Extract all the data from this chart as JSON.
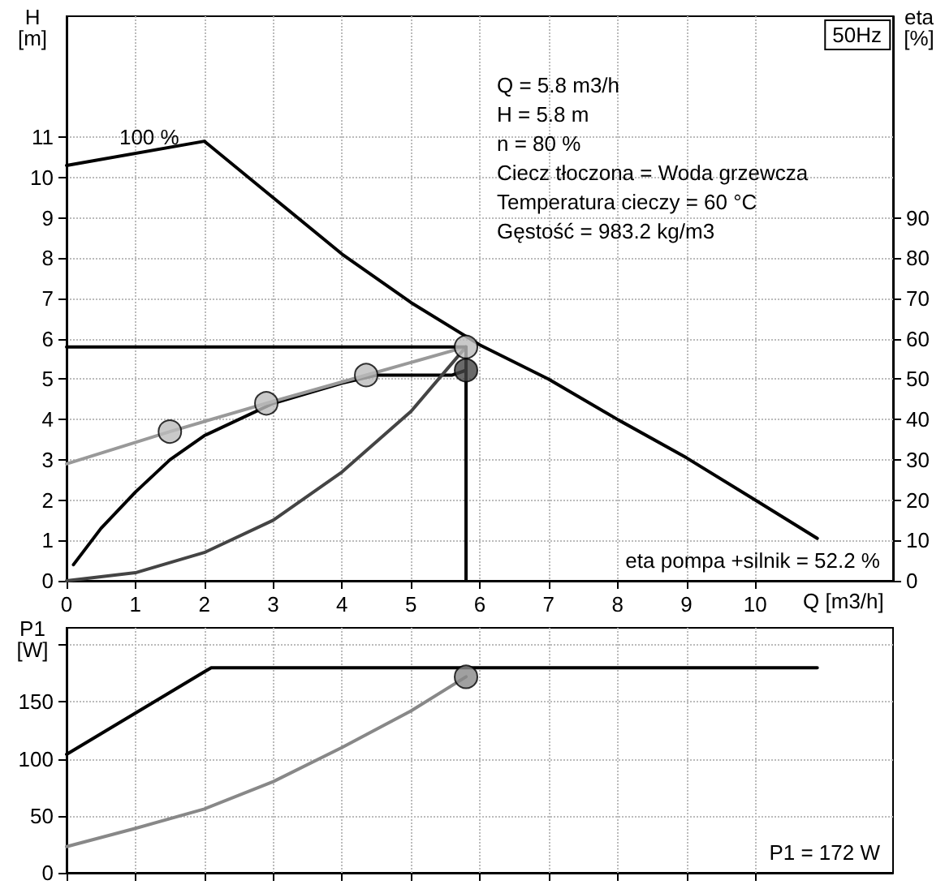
{
  "chart_data": [
    {
      "type": "line",
      "title": "50Hz",
      "xlabel": "Q [m3/h]",
      "ylabel": "H [m]",
      "y2label": "eta [%]",
      "xlim": [
        0,
        12
      ],
      "xticks": [
        0,
        1,
        2,
        3,
        4,
        5,
        6,
        7,
        8,
        9,
        10
      ],
      "ylim": [
        0,
        14
      ],
      "yticks": [
        0,
        1,
        2,
        3,
        4,
        5,
        6,
        7,
        8,
        9,
        10,
        11
      ],
      "y2lim": [
        0,
        140
      ],
      "y2ticks": [
        0,
        10,
        20,
        30,
        40,
        50,
        60,
        70,
        80,
        90
      ],
      "grid": true,
      "series": [
        {
          "color": "#000000",
          "x": [
            0,
            2,
            3,
            4,
            5,
            6,
            7,
            8,
            9,
            10,
            10.9
          ],
          "values": [
            10.3,
            10.9,
            9.5,
            8.1,
            6.9,
            5.85,
            5.0,
            4.0,
            3.05,
            2.0,
            1.05
          ]
        },
        {
          "color": "#000000",
          "axis": "y2",
          "x": [
            0.1,
            0.5,
            1,
            1.5,
            2,
            3,
            4,
            4.5,
            5,
            5.6,
            5.8
          ],
          "values": [
            4,
            13,
            22,
            30,
            36,
            44,
            49,
            51,
            51,
            51,
            52.2
          ]
        },
        {
          "color": "#999999",
          "x": [
            0,
            1.5,
            2.9,
            4.35,
            5.8
          ],
          "values": [
            2.9,
            3.7,
            4.4,
            5.1,
            5.8
          ]
        },
        {
          "color": "#444444",
          "x": [
            0,
            1,
            2,
            3,
            4,
            5,
            5.8
          ],
          "values": [
            0,
            0.2,
            0.7,
            1.5,
            2.7,
            4.2,
            5.8
          ]
        },
        {
          "color": "#000000",
          "x": [
            0,
            5.8,
            5.8
          ],
          "values": [
            5.8,
            5.8,
            0
          ]
        },
        {
          "type": "scatter",
          "marker": "circle",
          "color": "#bbbbbb",
          "x": [
            1.5,
            2.9,
            4.35,
            5.8
          ],
          "values": [
            3.7,
            4.4,
            5.1,
            5.8
          ]
        },
        {
          "type": "scatter",
          "marker": "circle",
          "color": "#444444",
          "axis": "y2",
          "x": [
            5.8
          ],
          "values": [
            52.2
          ]
        }
      ],
      "annotations": [
        {
          "text": "100 %",
          "x": 1.2,
          "y": 10.66
        },
        "Q = 5.8 m3/h",
        "H = 5.8 m",
        "n = 80 %",
        "Ciecz tłoczona = Woda grzewcza",
        "Temperatura cieczy = 60 °C",
        "Gęstość = 983.2 kg/m3",
        "eta pompa +silnik = 52.2 %"
      ]
    },
    {
      "type": "line",
      "ylabel": "P1 [W]",
      "tick_labels": "y",
      "xlim": [
        0,
        12
      ],
      "xticks": [
        0,
        1,
        2,
        3,
        4,
        5,
        6,
        7,
        8,
        9,
        10
      ],
      "ylim": [
        0,
        215
      ],
      "yticks": [
        0,
        50,
        100,
        150,
        {
          "value": 200,
          "label": null
        }
      ],
      "grid": true,
      "series": [
        {
          "color": "#000000",
          "x": [
            0,
            2.1,
            10.9
          ],
          "values": [
            104,
            180,
            180
          ]
        },
        {
          "color": "#888888",
          "x": [
            0,
            1,
            2,
            3,
            4,
            5,
            5.8
          ],
          "values": [
            23,
            39,
            56,
            80,
            110,
            142,
            172
          ]
        },
        {
          "type": "scatter",
          "marker": "circle",
          "color": "#888888",
          "x": [
            5.8
          ],
          "values": [
            172
          ]
        }
      ],
      "annotations": [
        "P1 = 172 W"
      ]
    }
  ]
}
